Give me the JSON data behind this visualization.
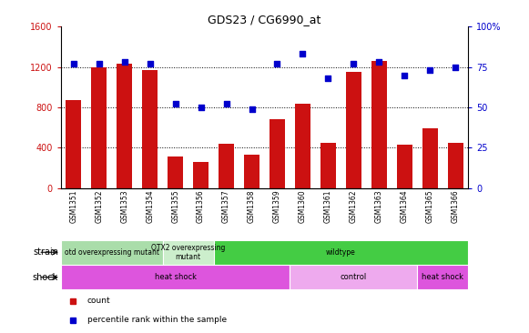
{
  "title": "GDS23 / CG6990_at",
  "samples": [
    "GSM1351",
    "GSM1352",
    "GSM1353",
    "GSM1354",
    "GSM1355",
    "GSM1356",
    "GSM1357",
    "GSM1358",
    "GSM1359",
    "GSM1360",
    "GSM1361",
    "GSM1362",
    "GSM1363",
    "GSM1364",
    "GSM1365",
    "GSM1366"
  ],
  "counts": [
    870,
    1200,
    1230,
    1170,
    310,
    260,
    440,
    330,
    680,
    840,
    450,
    1150,
    1260,
    430,
    590,
    450
  ],
  "percentiles": [
    77,
    77,
    78,
    77,
    52,
    50,
    52,
    49,
    77,
    83,
    68,
    77,
    78,
    70,
    73,
    75
  ],
  "left_ylim": [
    0,
    1600
  ],
  "right_ylim": [
    0,
    100
  ],
  "left_yticks": [
    0,
    400,
    800,
    1200,
    1600
  ],
  "right_yticks": [
    0,
    25,
    50,
    75,
    100
  ],
  "right_yticklabels": [
    "0",
    "25",
    "50",
    "75",
    "100%"
  ],
  "bar_color": "#cc1111",
  "dot_color": "#0000cc",
  "bg_color": "#ffffff",
  "strain_groups": [
    {
      "label": "otd overexpressing mutant",
      "start": 0,
      "end": 4,
      "color": "#aaddaa"
    },
    {
      "label": "OTX2 overexpressing\nmutant",
      "start": 4,
      "end": 6,
      "color": "#cceecc"
    },
    {
      "label": "wildtype",
      "start": 6,
      "end": 16,
      "color": "#44cc44"
    }
  ],
  "shock_groups": [
    {
      "label": "heat shock",
      "start": 0,
      "end": 9,
      "color": "#dd55dd"
    },
    {
      "label": "control",
      "start": 9,
      "end": 14,
      "color": "#eeaaee"
    },
    {
      "label": "heat shock",
      "start": 14,
      "end": 16,
      "color": "#dd55dd"
    }
  ],
  "legend_items": [
    {
      "label": "count",
      "color": "#cc1111"
    },
    {
      "label": "percentile rank within the sample",
      "color": "#0000cc"
    }
  ]
}
